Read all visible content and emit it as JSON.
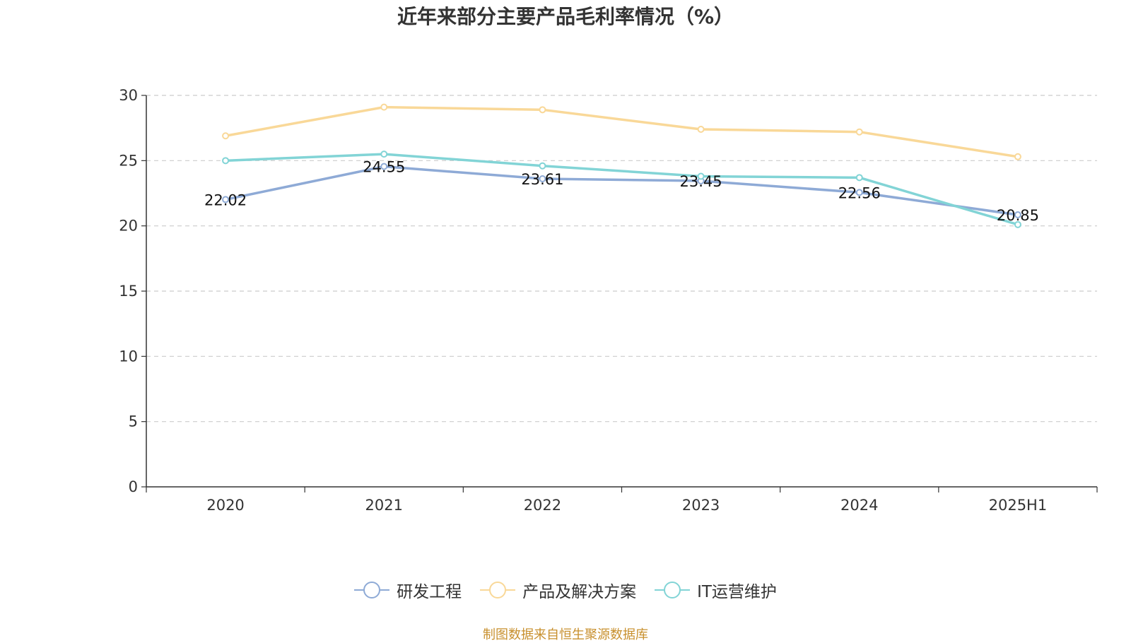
{
  "chart_data": {
    "type": "line",
    "title": "近年来部分主要产品毛利率情况（%）",
    "xlabel": "",
    "ylabel": "",
    "categories": [
      "2020",
      "2021",
      "2022",
      "2023",
      "2024",
      "2025H1"
    ],
    "ylim": [
      0,
      30
    ],
    "yticks": [
      0,
      5,
      10,
      15,
      20,
      25,
      30
    ],
    "grid": true,
    "legend_position": "bottom",
    "series": [
      {
        "name": "研发工程",
        "color": "#8eaad6",
        "values": [
          22.02,
          24.55,
          23.61,
          23.45,
          22.56,
          20.85
        ],
        "labels": [
          "22.02",
          "24.55",
          "23.61",
          "23.45",
          "22.56",
          "20.85"
        ]
      },
      {
        "name": "产品及解决方案",
        "color": "#f9d898",
        "values": [
          26.9,
          29.1,
          28.9,
          27.4,
          27.2,
          25.3
        ]
      },
      {
        "name": "IT运营维护",
        "color": "#82d4d6",
        "values": [
          25.0,
          25.5,
          24.6,
          23.8,
          23.7,
          20.1
        ]
      }
    ]
  },
  "source_note": "制图数据来自恒生聚源数据库"
}
